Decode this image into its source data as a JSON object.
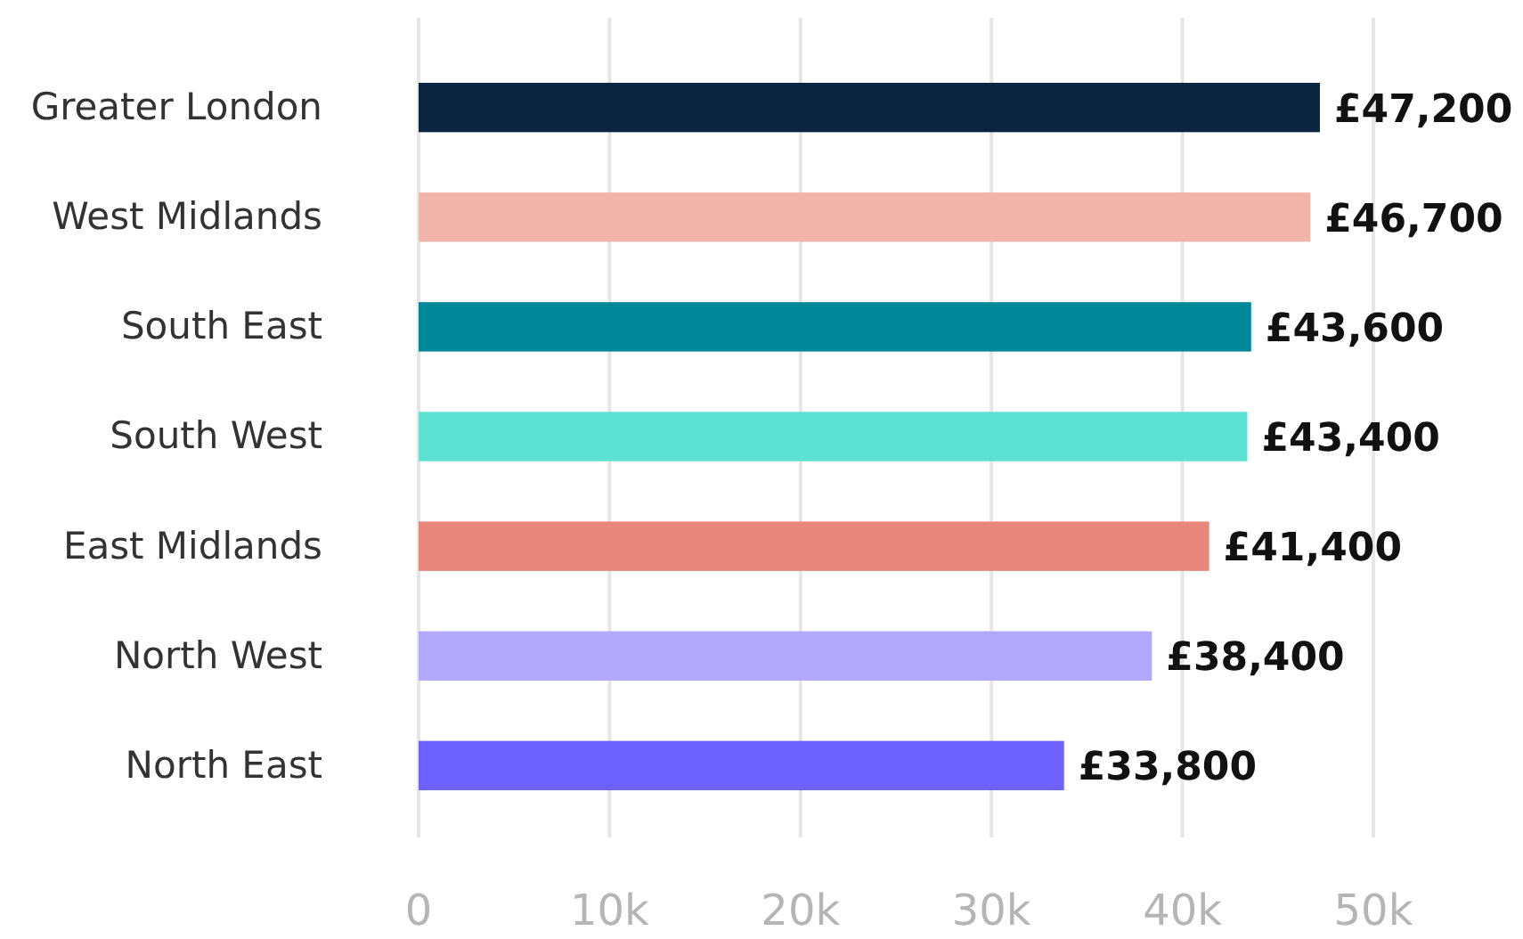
{
  "chart_data": {
    "type": "bar",
    "orientation": "horizontal",
    "categories": [
      "Greater London",
      "West Midlands",
      "South East",
      "South West",
      "East Midlands",
      "North West",
      "North East"
    ],
    "values": [
      47200,
      46700,
      43600,
      43400,
      41400,
      38400,
      33800
    ],
    "colors": [
      "#0b2540",
      "#f2b5ab",
      "#00889a",
      "#5ce1d2",
      "#e9867b",
      "#b1a8fb",
      "#6d62ff"
    ],
    "value_labels": [
      "£47,200",
      "£46,700",
      "£43,600",
      "£43,400",
      "£41,400",
      "£38,400",
      "£33,800"
    ],
    "xlim": [
      0,
      50000
    ],
    "xticks": [
      0,
      {
        "value": 10000,
        "label": "10k"
      },
      {
        "value": 20000,
        "label": "20k"
      },
      {
        "value": 30000,
        "label": "30k"
      },
      {
        "value": 40000,
        "label": "40k"
      },
      {
        "value": 50000,
        "label": "50k"
      }
    ],
    "grid": "x"
  }
}
